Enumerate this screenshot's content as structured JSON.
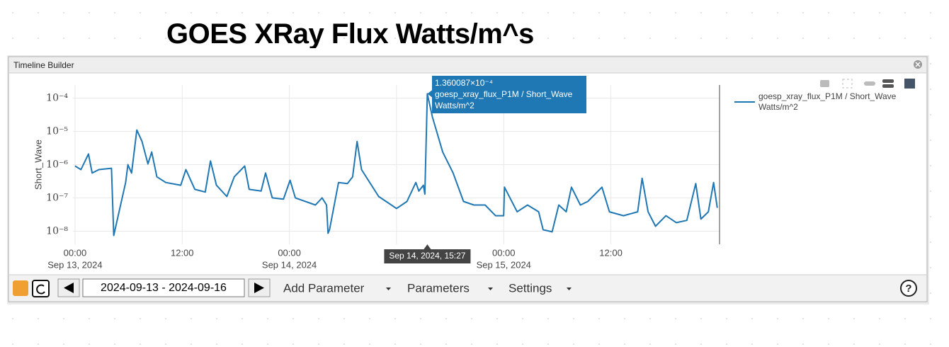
{
  "page": {
    "title": "GOES XRay Flux Watts/m^s",
    "window_title": "Timeline Builder",
    "toolbar": {
      "date_range": "2024-09-13 - 2024-09-16",
      "menus": [
        "Add Parameter",
        "Parameters",
        "Settings"
      ],
      "help": "?"
    }
  },
  "chart_data": {
    "type": "line",
    "ylabel": "Short_Wave",
    "log_y": true,
    "grid": true,
    "legend": "right",
    "ylim": [
      4e-09,
      0.00025
    ],
    "yticks": [
      {
        "value": 1e-08,
        "label": "10⁻⁸"
      },
      {
        "value": 1e-07,
        "label": "10⁻⁷"
      },
      {
        "value": 1e-06,
        "label": "10⁻⁶"
      },
      {
        "value": 1e-05,
        "label": "10⁻⁵"
      },
      {
        "value": 0.0001,
        "label": "10⁻⁴"
      }
    ],
    "xlim": [
      "2024-09-12 23:46",
      "2024-09-16 00:10"
    ],
    "xticks": [
      {
        "value": "2024-09-13 00:00",
        "label": [
          "00:00",
          "Sep 13, 2024"
        ]
      },
      {
        "value": "2024-09-13 12:00",
        "label": "12:00"
      },
      {
        "value": "2024-09-14 00:00",
        "label": [
          "00:00",
          "Sep 14, 2024"
        ]
      },
      {
        "value": "2024-09-14 12:00",
        "label": "12:00"
      },
      {
        "value": "2024-09-15 00:00",
        "label": [
          "00:00",
          "Sep 15, 2024"
        ]
      },
      {
        "value": "2024-09-15 12:00",
        "label": "12:00"
      }
    ],
    "x": [
      "2024-09-13 00:00",
      "2024-09-13 00:40",
      "2024-09-13 01:30",
      "2024-09-13 01:55",
      "2024-09-13 02:40",
      "2024-09-13 04:05",
      "2024-09-13 04:20",
      "2024-09-13 05:40",
      "2024-09-13 05:55",
      "2024-09-13 06:20",
      "2024-09-13 06:55",
      "2024-09-13 07:30",
      "2024-09-13 08:10",
      "2024-09-13 08:35",
      "2024-09-13 09:10",
      "2024-09-13 10:10",
      "2024-09-13 11:50",
      "2024-09-13 12:25",
      "2024-09-13 13:25",
      "2024-09-13 14:35",
      "2024-09-13 15:10",
      "2024-09-13 15:50",
      "2024-09-13 17:00",
      "2024-09-13 17:50",
      "2024-09-13 19:00",
      "2024-09-13 19:30",
      "2024-09-13 20:50",
      "2024-09-13 21:20",
      "2024-09-13 22:05",
      "2024-09-13 23:20",
      "2024-09-14 00:05",
      "2024-09-14 00:40",
      "2024-09-14 02:55",
      "2024-09-14 03:40",
      "2024-09-14 04:10",
      "2024-09-14 04:20",
      "2024-09-14 04:30",
      "2024-09-14 05:30",
      "2024-09-14 06:30",
      "2024-09-14 07:05",
      "2024-09-14 07:35",
      "2024-09-14 08:05",
      "2024-09-14 08:50",
      "2024-09-14 10:00",
      "2024-09-14 10:50",
      "2024-09-14 12:00",
      "2024-09-14 13:10",
      "2024-09-14 14:10",
      "2024-09-14 14:30",
      "2024-09-14 15:00",
      "2024-09-14 15:10",
      "2024-09-14 15:27",
      "2024-09-14 16:00",
      "2024-09-14 17:10",
      "2024-09-14 18:20",
      "2024-09-14 19:30",
      "2024-09-14 20:40",
      "2024-09-14 21:55",
      "2024-09-14 23:05",
      "2024-09-15 00:00",
      "2024-09-15 00:05",
      "2024-09-15 01:30",
      "2024-09-15 02:40",
      "2024-09-15 03:55",
      "2024-09-15 04:25",
      "2024-09-15 05:25",
      "2024-09-15 06:10",
      "2024-09-15 07:00",
      "2024-09-15 07:35",
      "2024-09-15 08:35",
      "2024-09-15 09:25",
      "2024-09-15 11:00",
      "2024-09-15 11:50",
      "2024-09-15 13:25",
      "2024-09-15 15:00",
      "2024-09-15 15:30",
      "2024-09-15 16:10",
      "2024-09-15 17:00",
      "2024-09-15 18:10",
      "2024-09-15 19:20",
      "2024-09-15 20:30",
      "2024-09-15 21:30",
      "2024-09-15 22:05",
      "2024-09-15 22:55",
      "2024-09-15 23:30",
      "2024-09-15 23:55"
    ],
    "series": [
      {
        "name": "goesp_xray_flux_P1M / Short_Wave Watts/m^2",
        "color": "#1f77b4",
        "values": [
          9.1e-07,
          7.1e-07,
          2.1e-06,
          5.6e-07,
          7.1e-07,
          7.8e-07,
          7.4e-09,
          2.9e-07,
          1e-06,
          5.6e-07,
          1.1e-05,
          5e-06,
          1.05e-06,
          2.4e-06,
          4.3e-07,
          2.9e-07,
          2.4e-07,
          7.1e-07,
          1.8e-07,
          1.5e-07,
          1.3e-06,
          2.4e-07,
          1.1e-07,
          4.3e-07,
          9.1e-07,
          1.8e-07,
          1.6e-07,
          5.6e-07,
          1e-07,
          9.1e-08,
          3.4e-07,
          1e-07,
          6.1e-08,
          1e-07,
          6.1e-08,
          8.6e-09,
          1.1e-08,
          2.9e-07,
          2.7e-07,
          4.3e-07,
          5e-06,
          7.1e-07,
          3.4e-07,
          1.1e-07,
          7.8e-08,
          4.8e-08,
          7.8e-08,
          2.9e-07,
          1.6e-07,
          2.4e-07,
          1.3e-07,
          0.0001360087,
          2.8e-05,
          2.4e-06,
          5.6e-07,
          7.8e-08,
          6.1e-08,
          6.1e-08,
          2.9e-08,
          2.9e-08,
          2.1e-07,
          3.8e-08,
          6.1e-08,
          3.8e-08,
          1.1e-08,
          9.5e-09,
          6.1e-08,
          3.8e-08,
          2.1e-07,
          6.1e-08,
          7.8e-08,
          2.1e-07,
          3.8e-08,
          2.9e-08,
          3.8e-08,
          3.9e-07,
          3.8e-08,
          1.4e-08,
          2.9e-08,
          1.8e-08,
          2.1e-08,
          2.7e-07,
          2.3e-08,
          3.8e-08,
          2.9e-07,
          5e-08
        ]
      }
    ],
    "hover": {
      "x": "2024-09-14 15:27",
      "x_label": "Sep 14, 2024, 15:27",
      "value": 0.0001360087,
      "value_label": "1.360087×10⁻⁴"
    }
  }
}
